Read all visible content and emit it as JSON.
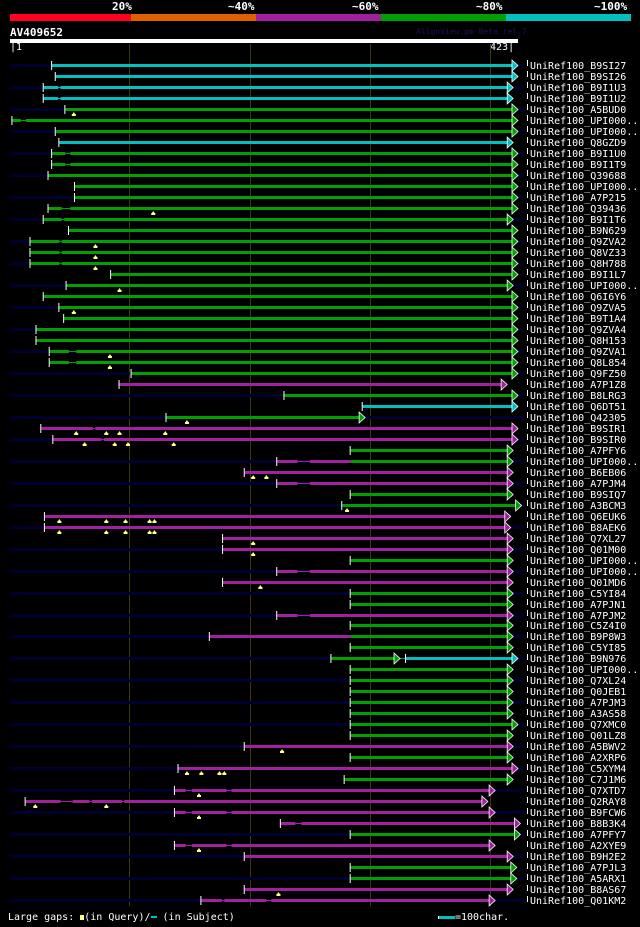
{
  "header": {
    "pct_labels": [
      "20%",
      "~40%",
      "~60%",
      "~80%",
      "~100%"
    ],
    "pct_colors": [
      "#ff0020",
      "#e06000",
      "#a020a0",
      "#00a000",
      "#00c0c0"
    ],
    "query_name": "AV409652",
    "version": "AlignView.pm Beta rel.7",
    "query_start": "1",
    "query_end": "423"
  },
  "footer": {
    "gaps_prefix": "Large gaps:",
    "gaps_query": "(in Query)/",
    "gaps_subject": "(in Subject)",
    "scale_label": "=100char."
  },
  "chart_data": {
    "type": "alignment-overview",
    "title": "AV409652",
    "query_length": 423,
    "x_range": [
      1,
      423
    ],
    "gridlines_at": [
      100,
      200,
      300,
      400
    ],
    "identity_bins": [
      {
        "label": "20%",
        "color": "#ff0020"
      },
      {
        "label": "~40%",
        "color": "#e06000"
      },
      {
        "label": "~60%",
        "color": "#a020a0"
      },
      {
        "label": "~80%",
        "color": "#00a000"
      },
      {
        "label": "~100%",
        "color": "#00c0c0"
      }
    ],
    "rows": [
      {
        "label": "UniRef100_B9SI27",
        "bg": true,
        "segs": [
          [
            36,
            418,
            "c"
          ]
        ],
        "tri": []
      },
      {
        "label": "UniRef100_B9SI26",
        "bg": false,
        "segs": [
          [
            39,
            418,
            "c"
          ]
        ],
        "tri": []
      },
      {
        "label": "UniRef100_B9I1U3",
        "bg": true,
        "segs": [
          [
            29,
            41,
            "c"
          ],
          [
            43,
            414,
            "c"
          ]
        ],
        "tri": []
      },
      {
        "label": "UniRef100_B9I1U2",
        "bg": false,
        "segs": [
          [
            29,
            41,
            "c"
          ],
          [
            43,
            414,
            "c"
          ]
        ],
        "tri": []
      },
      {
        "label": "UniRef100_A5BUD0",
        "bg": true,
        "segs": [
          [
            47,
            418,
            "g"
          ]
        ],
        "tri": [
          54
        ]
      },
      {
        "label": "UniRef100_UPI000..",
        "bg": false,
        "segs": [
          [
            3,
            10,
            "g"
          ],
          [
            14,
            418,
            "g"
          ]
        ],
        "tri": []
      },
      {
        "label": "UniRef100_UPI000..",
        "bg": true,
        "segs": [
          [
            39,
            418,
            "g"
          ]
        ],
        "tri": []
      },
      {
        "label": "UniRef100_Q8GZD9",
        "bg": false,
        "segs": [
          [
            42,
            414,
            "c"
          ]
        ],
        "tri": []
      },
      {
        "label": "UniRef100_B9I1U0",
        "bg": true,
        "segs": [
          [
            36,
            47,
            "g"
          ],
          [
            51,
            418,
            "g"
          ]
        ],
        "tri": []
      },
      {
        "label": "UniRef100_B9I1T9",
        "bg": false,
        "segs": [
          [
            36,
            47,
            "g"
          ],
          [
            51,
            418,
            "g"
          ]
        ],
        "tri": []
      },
      {
        "label": "UniRef100_Q39688",
        "bg": true,
        "segs": [
          [
            33,
            418,
            "g"
          ]
        ],
        "tri": []
      },
      {
        "label": "UniRef100_UPI000..",
        "bg": false,
        "segs": [
          [
            55,
            418,
            "g"
          ]
        ],
        "tri": []
      },
      {
        "label": "UniRef100_A7P215",
        "bg": true,
        "segs": [
          [
            55,
            418,
            "g"
          ]
        ],
        "tri": []
      },
      {
        "label": "UniRef100_Q39436",
        "bg": false,
        "segs": [
          [
            33,
            44,
            "g"
          ],
          [
            51,
            418,
            "g"
          ]
        ],
        "tri": [
          120
        ]
      },
      {
        "label": "UniRef100_B9I1T6",
        "bg": true,
        "segs": [
          [
            29,
            44,
            "g"
          ],
          [
            46,
            414,
            "g"
          ]
        ],
        "tri": []
      },
      {
        "label": "UniRef100_B9N629",
        "bg": false,
        "segs": [
          [
            50,
            418,
            "g"
          ]
        ],
        "tri": []
      },
      {
        "label": "UniRef100_Q9ZVA2",
        "bg": true,
        "segs": [
          [
            18,
            42,
            "g"
          ],
          [
            44,
            418,
            "g"
          ]
        ],
        "tri": [
          72
        ]
      },
      {
        "label": "UniRef100_Q8VZ33",
        "bg": false,
        "segs": [
          [
            18,
            42,
            "g"
          ],
          [
            44,
            418,
            "g"
          ]
        ],
        "tri": [
          72
        ]
      },
      {
        "label": "UniRef100_Q8H788",
        "bg": true,
        "segs": [
          [
            18,
            42,
            "g"
          ],
          [
            44,
            418,
            "g"
          ]
        ],
        "tri": [
          72
        ]
      },
      {
        "label": "UniRef100_B9I1L7",
        "bg": false,
        "segs": [
          [
            85,
            418,
            "g"
          ]
        ],
        "tri": []
      },
      {
        "label": "UniRef100_UPI000..",
        "bg": true,
        "segs": [
          [
            48,
            414,
            "g"
          ]
        ],
        "tri": [
          92
        ]
      },
      {
        "label": "UniRef100_Q6I6Y6",
        "bg": false,
        "segs": [
          [
            29,
            418,
            "g"
          ]
        ],
        "tri": []
      },
      {
        "label": "UniRef100_Q9ZVA5",
        "bg": true,
        "segs": [
          [
            42,
            418,
            "g"
          ]
        ],
        "tri": [
          54
        ]
      },
      {
        "label": "UniRef100_B9T1A4",
        "bg": false,
        "segs": [
          [
            46,
            418,
            "g"
          ]
        ],
        "tri": []
      },
      {
        "label": "UniRef100_Q9ZVA4",
        "bg": true,
        "segs": [
          [
            23,
            418,
            "g"
          ]
        ],
        "tri": []
      },
      {
        "label": "UniRef100_Q8H153",
        "bg": false,
        "segs": [
          [
            23,
            418,
            "g"
          ]
        ],
        "tri": []
      },
      {
        "label": "UniRef100_Q9ZVA1",
        "bg": true,
        "segs": [
          [
            34,
            50,
            "g"
          ],
          [
            56,
            418,
            "g"
          ]
        ],
        "tri": [
          84
        ]
      },
      {
        "label": "UniRef100_Q8L854",
        "bg": false,
        "segs": [
          [
            34,
            50,
            "g"
          ],
          [
            56,
            418,
            "g"
          ]
        ],
        "tri": [
          84
        ]
      },
      {
        "label": "UniRef100_Q9FZ50",
        "bg": true,
        "segs": [
          [
            102,
            418,
            "g"
          ]
        ],
        "tri": []
      },
      {
        "label": "UniRef100_A7P1Z8",
        "bg": false,
        "segs": [
          [
            92,
            409,
            "m"
          ]
        ],
        "tri": []
      },
      {
        "label": "UniRef100_B8LRG3",
        "bg": true,
        "segs": [
          [
            229,
            418,
            "g"
          ]
        ],
        "tri": []
      },
      {
        "label": "UniRef100_Q6DT51",
        "bg": false,
        "segs": [
          [
            294,
            418,
            "c"
          ]
        ],
        "tri": []
      },
      {
        "label": "UniRef100_Q42305",
        "bg": true,
        "segs": [
          [
            131,
            291,
            "g"
          ]
        ],
        "tri": [
          148
        ]
      },
      {
        "label": "UniRef100_B9SIR1",
        "bg": false,
        "segs": [
          [
            27,
            70,
            "m"
          ],
          [
            72,
            418,
            "m"
          ]
        ],
        "tri": [
          56,
          81,
          92,
          130
        ]
      },
      {
        "label": "UniRef100_B9SIR0",
        "bg": true,
        "segs": [
          [
            37,
            77,
            "m"
          ],
          [
            79,
            418,
            "m"
          ]
        ],
        "tri": [
          63,
          88,
          99,
          137
        ]
      },
      {
        "label": "UniRef100_A7PFY6",
        "bg": false,
        "segs": [
          [
            284,
            414,
            "g"
          ]
        ],
        "tri": []
      },
      {
        "label": "UniRef100_UPI000..",
        "bg": true,
        "segs": [
          [
            223,
            240,
            "m"
          ],
          [
            250,
            284,
            "m"
          ],
          [
            284,
            414,
            "g"
          ]
        ],
        "tri": []
      },
      {
        "label": "UniRef100_B6EB06",
        "bg": false,
        "segs": [
          [
            196,
            414,
            "m"
          ]
        ],
        "tri": [
          203,
          214
        ]
      },
      {
        "label": "UniRef100_A7PJM4",
        "bg": true,
        "segs": [
          [
            223,
            240,
            "m"
          ],
          [
            250,
            414,
            "m"
          ]
        ],
        "tri": []
      },
      {
        "label": "UniRef100_B9SIQ7",
        "bg": false,
        "segs": [
          [
            284,
            414,
            "g"
          ]
        ],
        "tri": []
      },
      {
        "label": "UniRef100_A3BCM3",
        "bg": true,
        "segs": [
          [
            277,
            421,
            "g"
          ]
        ],
        "tri": [
          281
        ]
      },
      {
        "label": "UniRef100_Q6EUK6",
        "bg": false,
        "segs": [
          [
            30,
            412,
            "m"
          ]
        ],
        "tri": [
          42,
          81,
          97,
          117,
          121
        ]
      },
      {
        "label": "UniRef100_B8AEK6",
        "bg": true,
        "segs": [
          [
            30,
            412,
            "m"
          ]
        ],
        "tri": [
          42,
          81,
          97,
          117,
          121
        ]
      },
      {
        "label": "UniRef100_Q7XL27",
        "bg": false,
        "segs": [
          [
            178,
            414,
            "m"
          ]
        ],
        "tri": [
          203
        ]
      },
      {
        "label": "UniRef100_Q01M00",
        "bg": true,
        "segs": [
          [
            178,
            414,
            "m"
          ]
        ],
        "tri": [
          203
        ]
      },
      {
        "label": "UniRef100_UPI000..",
        "bg": false,
        "segs": [
          [
            284,
            414,
            "g"
          ]
        ],
        "tri": []
      },
      {
        "label": "UniRef100_UPI000..",
        "bg": true,
        "segs": [
          [
            223,
            240,
            "m"
          ],
          [
            250,
            414,
            "m"
          ]
        ],
        "tri": []
      },
      {
        "label": "UniRef100_Q01MD6",
        "bg": false,
        "segs": [
          [
            178,
            414,
            "m"
          ]
        ],
        "tri": [
          209
        ]
      },
      {
        "label": "UniRef100_C5YI84",
        "bg": true,
        "segs": [
          [
            284,
            414,
            "g"
          ]
        ],
        "tri": []
      },
      {
        "label": "UniRef100_A7PJN1",
        "bg": false,
        "segs": [
          [
            284,
            414,
            "g"
          ]
        ],
        "tri": []
      },
      {
        "label": "UniRef100_A7PJM2",
        "bg": true,
        "segs": [
          [
            223,
            240,
            "m"
          ],
          [
            250,
            414,
            "m"
          ]
        ],
        "tri": []
      },
      {
        "label": "UniRef100_C5Z4I0",
        "bg": false,
        "segs": [
          [
            284,
            414,
            "g"
          ]
        ],
        "tri": []
      },
      {
        "label": "UniRef100_B9P8W3",
        "bg": true,
        "segs": [
          [
            167,
            284,
            "m"
          ],
          [
            284,
            414,
            "g"
          ]
        ],
        "tri": []
      },
      {
        "label": "UniRef100_C5YI85",
        "bg": false,
        "segs": [
          [
            284,
            414,
            "g"
          ]
        ],
        "tri": []
      },
      {
        "label": "UniRef100_B9N976",
        "bg": true,
        "segs": [
          [
            268,
            320,
            "g"
          ],
          [
            330,
            418,
            "c"
          ]
        ],
        "tri": []
      },
      {
        "label": "UniRef100_UPI000..",
        "bg": false,
        "segs": [
          [
            284,
            414,
            "g"
          ]
        ],
        "tri": []
      },
      {
        "label": "UniRef100_Q7XL24",
        "bg": true,
        "segs": [
          [
            284,
            414,
            "g"
          ]
        ],
        "tri": []
      },
      {
        "label": "UniRef100_Q0JEB1",
        "bg": false,
        "segs": [
          [
            284,
            414,
            "g"
          ]
        ],
        "tri": []
      },
      {
        "label": "UniRef100_A7PJM3",
        "bg": true,
        "segs": [
          [
            284,
            414,
            "g"
          ]
        ],
        "tri": []
      },
      {
        "label": "UniRef100_A3AS58",
        "bg": false,
        "segs": [
          [
            284,
            414,
            "g"
          ]
        ],
        "tri": []
      },
      {
        "label": "UniRef100_Q7XMC0",
        "bg": true,
        "segs": [
          [
            284,
            418,
            "g"
          ]
        ],
        "tri": []
      },
      {
        "label": "UniRef100_Q01LZ8",
        "bg": false,
        "segs": [
          [
            284,
            414,
            "g"
          ]
        ],
        "tri": []
      },
      {
        "label": "UniRef100_A5BWV2",
        "bg": true,
        "segs": [
          [
            196,
            414,
            "m"
          ]
        ],
        "tri": [
          227
        ]
      },
      {
        "label": "UniRef100_A2XRP6",
        "bg": false,
        "segs": [
          [
            284,
            414,
            "g"
          ]
        ],
        "tri": []
      },
      {
        "label": "UniRef100_C5XYM4",
        "bg": true,
        "segs": [
          [
            141,
            418,
            "m"
          ]
        ],
        "tri": [
          148,
          160,
          175,
          179
        ]
      },
      {
        "label": "UniRef100_C7J1M6",
        "bg": false,
        "segs": [
          [
            279,
            414,
            "g"
          ]
        ],
        "tri": []
      },
      {
        "label": "UniRef100_Q7XTD7",
        "bg": true,
        "segs": [
          [
            138,
            147,
            "m"
          ],
          [
            152,
            181,
            "m"
          ],
          [
            185,
            399,
            "m"
          ]
        ],
        "tri": [
          158
        ]
      },
      {
        "label": "UniRef100_Q2RAY8",
        "bg": false,
        "segs": [
          [
            14,
            43,
            "m"
          ],
          [
            53,
            67,
            "m"
          ],
          [
            69,
            94,
            "m"
          ],
          [
            96,
            393,
            "m"
          ]
        ],
        "tri": [
          22,
          81
        ]
      },
      {
        "label": "UniRef100_B9FCW6",
        "bg": true,
        "segs": [
          [
            138,
            147,
            "m"
          ],
          [
            152,
            181,
            "m"
          ],
          [
            185,
            399,
            "m"
          ]
        ],
        "tri": [
          158
        ]
      },
      {
        "label": "UniRef100_B8B3K4",
        "bg": false,
        "segs": [
          [
            226,
            238,
            "m"
          ],
          [
            243,
            420,
            "m"
          ]
        ],
        "tri": []
      },
      {
        "label": "UniRef100_A7PFY7",
        "bg": true,
        "segs": [
          [
            284,
            420,
            "g"
          ]
        ],
        "tri": []
      },
      {
        "label": "UniRef100_A2XYE9",
        "bg": false,
        "segs": [
          [
            138,
            147,
            "m"
          ],
          [
            152,
            181,
            "m"
          ],
          [
            185,
            399,
            "m"
          ]
        ],
        "tri": [
          158
        ]
      },
      {
        "label": "UniRef100_B9H2E2",
        "bg": true,
        "segs": [
          [
            196,
            414,
            "m"
          ]
        ],
        "tri": []
      },
      {
        "label": "UniRef100_A7PJL3",
        "bg": false,
        "segs": [
          [
            284,
            417,
            "g"
          ]
        ],
        "tri": []
      },
      {
        "label": "UniRef100_A5ARX1",
        "bg": true,
        "segs": [
          [
            284,
            417,
            "g"
          ]
        ],
        "tri": []
      },
      {
        "label": "UniRef100_B8AS67",
        "bg": false,
        "segs": [
          [
            196,
            414,
            "m"
          ]
        ],
        "tri": [
          224
        ]
      },
      {
        "label": "UniRef100_Q01KM2",
        "bg": true,
        "segs": [
          [
            160,
            177,
            "m"
          ],
          [
            179,
            214,
            "m"
          ],
          [
            218,
            399,
            "m"
          ]
        ],
        "tri": []
      }
    ]
  }
}
